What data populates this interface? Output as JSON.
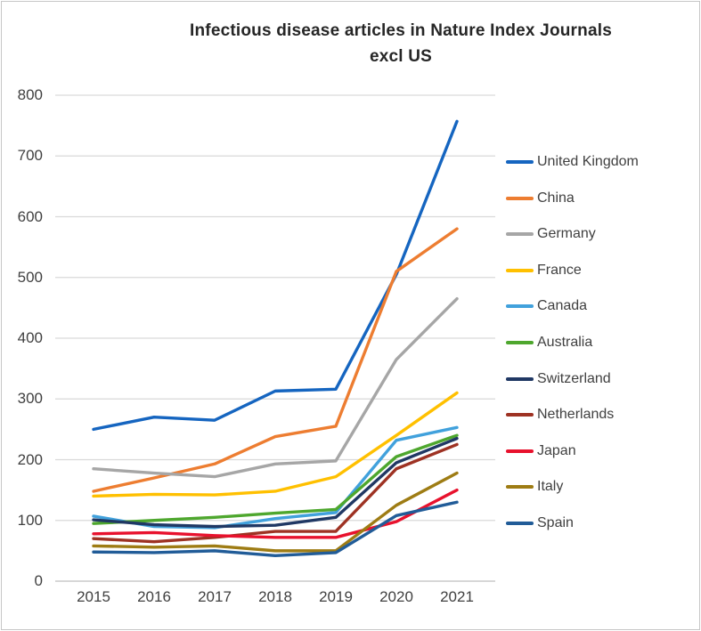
{
  "title": {
    "line1": "Infectious disease articles in Nature Index Journals",
    "line2": "excl US"
  },
  "chart_data": {
    "type": "line",
    "title": "Infectious disease articles in Nature Index Journals excl US",
    "x": [
      2015,
      2016,
      2017,
      2018,
      2019,
      2020,
      2021
    ],
    "xlabel": "",
    "ylabel": "",
    "ylim": [
      0,
      800
    ],
    "yticks": [
      0,
      100,
      200,
      300,
      400,
      500,
      600,
      700,
      800
    ],
    "grid": true,
    "legend_position": "right",
    "series": [
      {
        "name": "United Kingdom",
        "color": "#1565C0",
        "values": [
          250,
          270,
          265,
          313,
          316,
          505,
          757
        ]
      },
      {
        "name": "China",
        "color": "#ED7D31",
        "values": [
          148,
          170,
          193,
          238,
          255,
          510,
          580
        ]
      },
      {
        "name": "Germany",
        "color": "#A6A6A6",
        "values": [
          185,
          178,
          172,
          193,
          198,
          365,
          465
        ]
      },
      {
        "name": "France",
        "color": "#FFC000",
        "values": [
          140,
          143,
          142,
          148,
          172,
          240,
          310
        ]
      },
      {
        "name": "Canada",
        "color": "#41A1DC",
        "values": [
          107,
          90,
          88,
          103,
          113,
          232,
          253
        ]
      },
      {
        "name": "Australia",
        "color": "#4EA72E",
        "values": [
          95,
          100,
          105,
          112,
          118,
          205,
          240
        ]
      },
      {
        "name": "Switzerland",
        "color": "#203864",
        "values": [
          101,
          93,
          90,
          92,
          105,
          195,
          235
        ]
      },
      {
        "name": "Netherlands",
        "color": "#9E3223",
        "values": [
          70,
          65,
          72,
          82,
          82,
          185,
          225
        ]
      },
      {
        "name": "Japan",
        "color": "#E8112D",
        "values": [
          78,
          80,
          75,
          72,
          72,
          98,
          150
        ]
      },
      {
        "name": "Italy",
        "color": "#9E7C14",
        "values": [
          58,
          56,
          58,
          50,
          50,
          125,
          178
        ]
      },
      {
        "name": "Spain",
        "color": "#215C98",
        "values": [
          48,
          47,
          50,
          42,
          47,
          108,
          130
        ]
      }
    ],
    "gridline_color": "#D9D9D9",
    "axis_line_color": "#BFBFBF",
    "axis_text_color": "#404040"
  }
}
